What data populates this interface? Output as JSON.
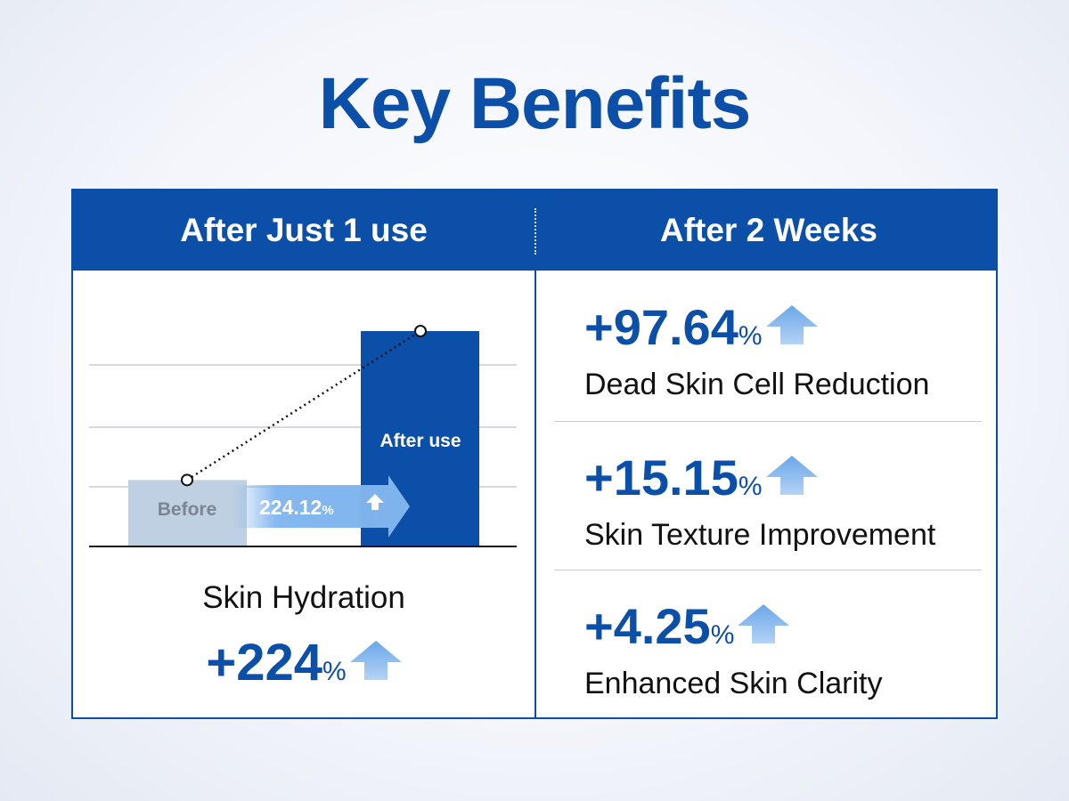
{
  "title": "Key Benefits",
  "colors": {
    "brand_blue": "#0b4fa8",
    "light_blue": "#7fb4ee",
    "before_bar": "#c0d0e3"
  },
  "left_column": {
    "header": "After Just 1 use",
    "chart": {
      "before_label": "Before",
      "after_label": "After use",
      "increase_value": "224.12",
      "increase_unit": "%"
    },
    "metric_label": "Skin Hydration",
    "metric_value": "+224",
    "metric_unit": "%"
  },
  "right_column": {
    "header": "After 2 Weeks",
    "stats": [
      {
        "value": "+97.64",
        "unit": "%",
        "label": "Dead Skin Cell Reduction"
      },
      {
        "value": "+15.15",
        "unit": "%",
        "label": "Skin Texture Improvement"
      },
      {
        "value": "+4.25",
        "unit": "%",
        "label": "Enhanced Skin Clarity"
      }
    ]
  },
  "chart_data": {
    "type": "bar",
    "categories": [
      "Before",
      "After use"
    ],
    "values": [
      1,
      3.2412
    ],
    "annotations": [
      "224.12%"
    ]
  }
}
